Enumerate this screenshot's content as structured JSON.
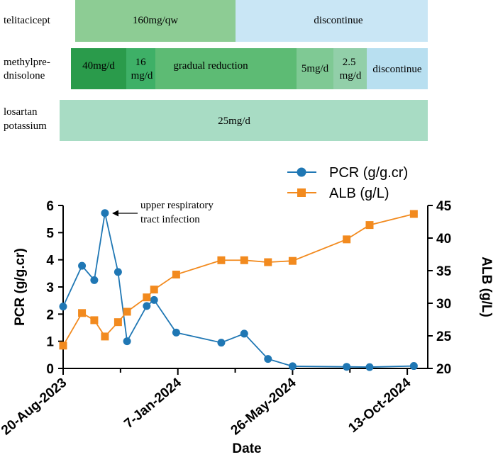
{
  "timeline": {
    "rows": [
      {
        "drug": "telitacicept",
        "drug_lines": [
          "telitacicept"
        ],
        "segments": [
          {
            "text_lines": [
              "160mg/qw"
            ],
            "color": "#8dcc94"
          },
          {
            "text_lines": [
              "discontinue"
            ],
            "color": "#c9e6f5"
          }
        ]
      },
      {
        "drug": "methylprednisolone",
        "drug_lines": [
          "methylpre-",
          "dnisolone"
        ],
        "segments": [
          {
            "text_lines": [
              "40mg/d"
            ],
            "color": "#2a9b4b"
          },
          {
            "text_lines": [
              "16",
              "mg/d"
            ],
            "color": "#3eb067"
          },
          {
            "text_lines": [
              "gradual reduction"
            ],
            "color": "#5dbb74"
          },
          {
            "text_lines": [
              "5mg/d"
            ],
            "color": "#7fc994"
          },
          {
            "text_lines": [
              "2.5",
              "mg/d"
            ],
            "color": "#92cfa9"
          },
          {
            "text_lines": [
              "discontinue"
            ],
            "color": "#b8dff0"
          }
        ]
      },
      {
        "drug": "losartan potassium",
        "drug_lines": [
          "losartan",
          "potassium"
        ],
        "segments": [
          {
            "text_lines": [
              "25mg/d"
            ],
            "color": "#a8dcc4"
          }
        ]
      }
    ]
  },
  "chart_data": {
    "type": "line",
    "xlabel": "Date",
    "ylabel_left": "PCR (g/g.cr)",
    "ylabel_right": "ALB (g/L)",
    "x_ticks": [
      {
        "label": "20-Aug-2023",
        "day": 0
      },
      {
        "label": "7-Jan-2024",
        "day": 140
      },
      {
        "label": "26-May-2024",
        "day": 280
      },
      {
        "label": "13-Oct-2024",
        "day": 420
      }
    ],
    "x_range": [
      0,
      445
    ],
    "y_left": {
      "range": [
        0,
        6
      ],
      "ticks": [
        0,
        1,
        2,
        3,
        4,
        5,
        6
      ]
    },
    "y_right": {
      "range": [
        20,
        45
      ],
      "ticks": [
        20,
        25,
        30,
        35,
        40,
        45
      ]
    },
    "legend_position": "top-right",
    "series": [
      {
        "name": "PCR (g/g.cr)",
        "axis": "left",
        "marker": "circle",
        "color": "#1f77b4",
        "points": [
          {
            "day": 0,
            "value": 2.28
          },
          {
            "day": 23,
            "value": 3.78
          },
          {
            "day": 38,
            "value": 3.25
          },
          {
            "day": 51,
            "value": 5.72
          },
          {
            "day": 67,
            "value": 3.55
          },
          {
            "day": 78,
            "value": 1.0
          },
          {
            "day": 102,
            "value": 2.3
          },
          {
            "day": 111,
            "value": 2.52
          },
          {
            "day": 138,
            "value": 1.32
          },
          {
            "day": 193,
            "value": 0.95
          },
          {
            "day": 221,
            "value": 1.28
          },
          {
            "day": 250,
            "value": 0.35
          },
          {
            "day": 280,
            "value": 0.08
          },
          {
            "day": 346,
            "value": 0.06
          },
          {
            "day": 374,
            "value": 0.05
          },
          {
            "day": 428,
            "value": 0.09
          }
        ]
      },
      {
        "name": "ALB (g/L)",
        "axis": "right",
        "marker": "square",
        "color": "#f28a1e",
        "points": [
          {
            "day": 0,
            "value": 23.5
          },
          {
            "day": 23,
            "value": 28.5
          },
          {
            "day": 38,
            "value": 27.4
          },
          {
            "day": 51,
            "value": 24.9
          },
          {
            "day": 67,
            "value": 27.1
          },
          {
            "day": 78,
            "value": 28.7
          },
          {
            "day": 102,
            "value": 30.9
          },
          {
            "day": 111,
            "value": 32.1
          },
          {
            "day": 138,
            "value": 34.4
          },
          {
            "day": 193,
            "value": 36.6
          },
          {
            "day": 221,
            "value": 36.6
          },
          {
            "day": 250,
            "value": 36.3
          },
          {
            "day": 280,
            "value": 36.5
          },
          {
            "day": 346,
            "value": 39.8
          },
          {
            "day": 374,
            "value": 42.0
          },
          {
            "day": 428,
            "value": 43.7
          }
        ]
      }
    ],
    "annotations": [
      {
        "text_lines": [
          "upper respiratory",
          "tract infection"
        ],
        "series": "PCR (g/g.cr)",
        "point_index": 3
      }
    ]
  }
}
